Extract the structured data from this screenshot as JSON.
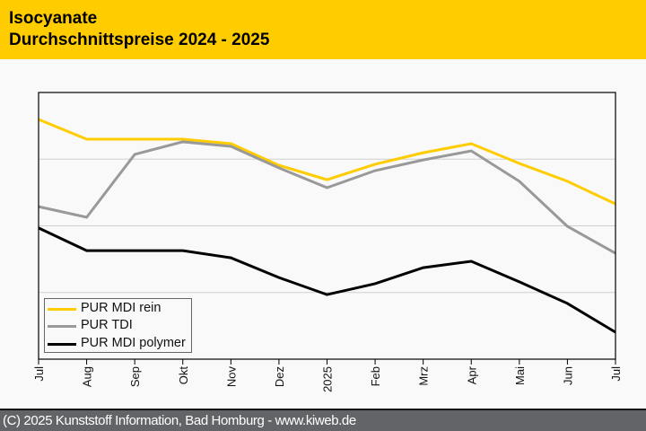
{
  "header": {
    "title_line1": "Isocyanate",
    "title_line2": "Durchschnittspreise 2024 - 2025",
    "background_color": "#ffcc00"
  },
  "footer": {
    "text": "(C) 2025 Kunststoff Information, Bad Homburg - www.kiweb.de"
  },
  "chart_data": {
    "type": "line",
    "title": "Isocyanate Durchschnittspreise 2024 - 2025",
    "xlabel": "",
    "ylabel": "",
    "y_axis_labels_shown": false,
    "ylim": [
      0,
      100
    ],
    "y_gridlines": [
      25,
      50,
      75
    ],
    "grid": true,
    "legend_position": "bottom-left",
    "categories": [
      "Jul",
      "Aug",
      "Sep",
      "Okt",
      "Nov",
      "Dez",
      "2025",
      "Feb",
      "Mrz",
      "Apr",
      "Mai",
      "Jun",
      "Jul"
    ],
    "series": [
      {
        "name": "PUR MDI rein",
        "color": "#ffcc00",
        "values": [
          89.9,
          82.5,
          82.5,
          82.5,
          80.8,
          72.7,
          67.3,
          73.1,
          77.4,
          80.8,
          73.4,
          66.7,
          58.2
        ]
      },
      {
        "name": "PUR TDI",
        "color": "#999999",
        "values": [
          57.2,
          53.2,
          76.8,
          81.5,
          79.8,
          71.7,
          64.3,
          70.7,
          74.7,
          78.1,
          66.7,
          49.8,
          39.7
        ]
      },
      {
        "name": "PUR MDI polymer",
        "color": "#000000",
        "values": [
          49.2,
          40.7,
          40.7,
          40.7,
          38.0,
          30.6,
          24.2,
          28.3,
          34.3,
          36.7,
          29.0,
          20.9,
          10.1
        ]
      }
    ]
  }
}
